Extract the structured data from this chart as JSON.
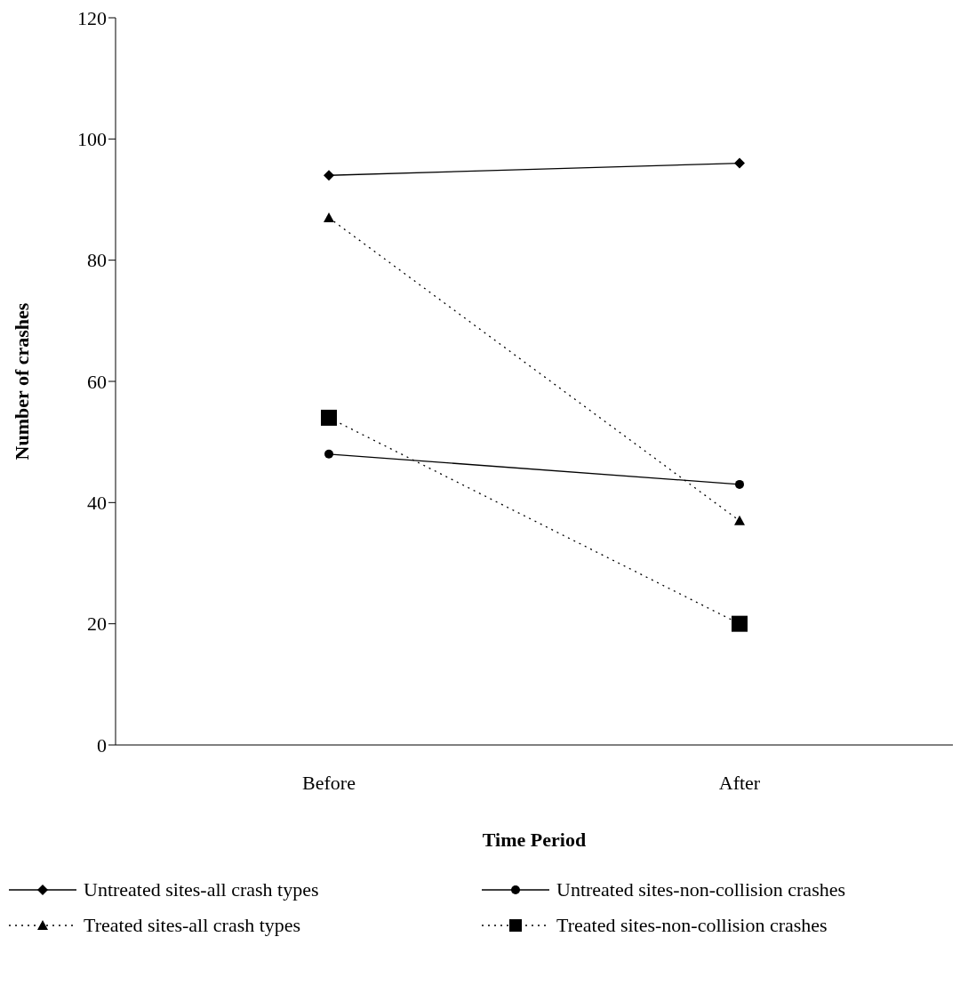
{
  "chart_data": {
    "type": "line",
    "xlabel": "Time Period",
    "ylabel": "Number of crashes",
    "categories": [
      "Before",
      "After"
    ],
    "series": [
      {
        "name": "Untreated sites-all crash types",
        "color": "#000000",
        "values": [
          94,
          96
        ],
        "marker": "diamond",
        "line_style": "solid"
      },
      {
        "name": "Untreated sites-non-collision crashes",
        "color": "#000000",
        "values": [
          48,
          43
        ],
        "marker": "circle",
        "line_style": "solid"
      },
      {
        "name": "Treated sites-all crash types",
        "color": "#000000",
        "values": [
          87,
          37
        ],
        "marker": "triangle",
        "line_style": "dotted"
      },
      {
        "name": "Treated sites-non-collision crashes",
        "color": "#000000",
        "values": [
          54,
          20
        ],
        "marker": "square",
        "line_style": "dotted"
      }
    ],
    "ylim": [
      0,
      120
    ],
    "yticks": [
      0,
      20,
      40,
      60,
      80,
      100,
      120
    ],
    "legend": "bottom"
  }
}
